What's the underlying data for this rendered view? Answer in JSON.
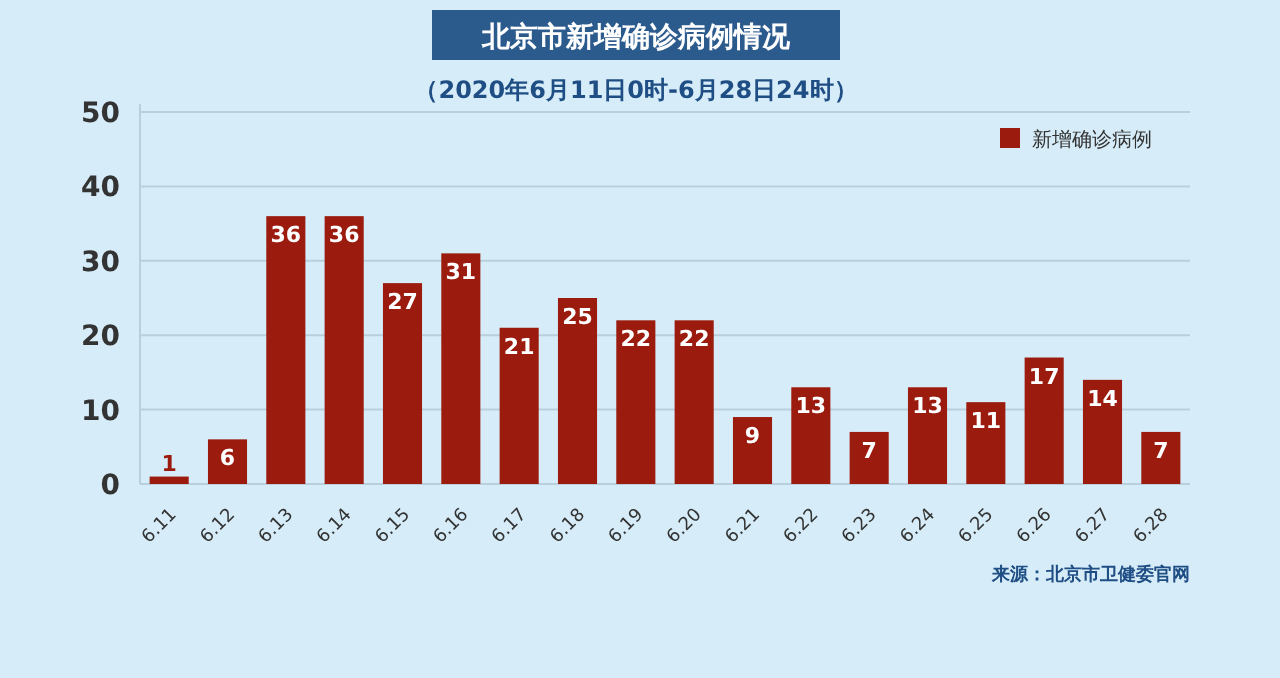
{
  "chart_data": {
    "type": "bar",
    "title": "北京市新增确诊病例情况",
    "subtitle": "（2020年6月11日0时-6月28日24时）",
    "categories": [
      "6.11",
      "6.12",
      "6.13",
      "6.14",
      "6.15",
      "6.16",
      "6.17",
      "6.18",
      "6.19",
      "6.20",
      "6.21",
      "6.22",
      "6.23",
      "6.24",
      "6.25",
      "6.26",
      "6.27",
      "6.28"
    ],
    "series": [
      {
        "name": "新增确诊病例",
        "color": "#9b1b0e",
        "values": [
          1,
          6,
          36,
          36,
          27,
          31,
          21,
          25,
          22,
          22,
          9,
          13,
          7,
          13,
          11,
          17,
          14,
          7
        ]
      }
    ],
    "ylim": [
      0,
      50
    ],
    "yticks": [
      0,
      10,
      20,
      30,
      40,
      50
    ],
    "grid": "y",
    "legend": "top right",
    "data_labels": true,
    "annotations": [
      "来源：北京市卫健委官网"
    ]
  }
}
